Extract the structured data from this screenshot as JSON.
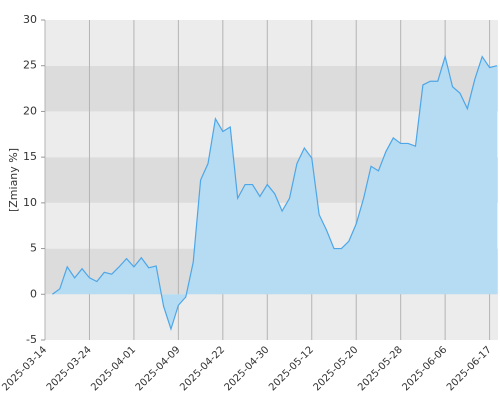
{
  "chart_data": {
    "type": "area",
    "y_label": "[Zmiany %]",
    "categories": [
      "2025-03-14",
      null,
      null,
      null,
      null,
      null,
      "2025-03-24",
      null,
      null,
      null,
      null,
      null,
      "2025-04-01",
      null,
      null,
      null,
      null,
      null,
      "2025-04-09",
      null,
      null,
      null,
      null,
      null,
      "2025-04-22",
      null,
      null,
      null,
      null,
      null,
      "2025-04-30",
      null,
      null,
      null,
      null,
      null,
      "2025-05-12",
      null,
      null,
      null,
      null,
      null,
      "2025-05-20",
      null,
      null,
      null,
      null,
      null,
      "2025-05-28",
      null,
      null,
      null,
      null,
      null,
      "2025-06-06",
      null,
      null,
      null,
      null,
      null,
      "2025-06-17",
      null
    ],
    "series": [
      {
        "name": "Zmiany",
        "color": "#4da6e8",
        "fill": "#b5dcf2",
        "values": [
          null,
          0,
          0.6,
          3,
          1.8,
          2.8,
          1.8,
          1.4,
          2.4,
          2.2,
          3,
          3.9,
          3,
          4,
          2.9,
          3.1,
          -1.3,
          -3.8,
          -1.2,
          -0.3,
          3.5,
          12.5,
          14.3,
          19.2,
          17.8,
          18.3,
          10.5,
          12,
          12,
          10.7,
          12,
          11,
          9.1,
          10.5,
          14.3,
          16,
          14.9,
          8.7,
          7,
          5,
          5,
          5.8,
          7.7,
          10.5,
          14,
          13.5,
          15.6,
          17.1,
          16.5,
          16.5,
          16.2,
          22.9,
          23.3,
          23.3,
          26,
          22.7,
          22,
          20.3,
          23.5,
          26,
          24.8,
          25
        ]
      }
    ],
    "ylim": [
      -5,
      30
    ],
    "yticks": [
      -5,
      0,
      5,
      10,
      15,
      20,
      25,
      30
    ],
    "band_colors": [
      "#ececec",
      "#dcdcdc"
    ],
    "grid_color": "#b4b4b4"
  }
}
